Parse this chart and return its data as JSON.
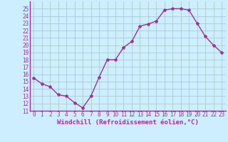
{
  "x": [
    0,
    1,
    2,
    3,
    4,
    5,
    6,
    7,
    8,
    9,
    10,
    11,
    12,
    13,
    14,
    15,
    16,
    17,
    18,
    19,
    20,
    21,
    22,
    23
  ],
  "y": [
    15.5,
    14.7,
    14.3,
    13.2,
    13.0,
    12.1,
    11.4,
    13.0,
    15.6,
    18.0,
    18.0,
    19.7,
    20.5,
    22.6,
    22.9,
    23.3,
    24.8,
    25.0,
    25.0,
    24.8,
    23.0,
    21.2,
    20.0,
    19.0
  ],
  "line_color": "#993399",
  "marker": "*",
  "marker_size": 3,
  "background_color": "#cceeff",
  "grid_color": "#aacccc",
  "xlabel": "Windchill (Refroidissement éolien,°C)",
  "xlabel_fontsize": 6.5,
  "ylim": [
    11,
    26
  ],
  "xlim": [
    -0.5,
    23.5
  ],
  "yticks": [
    11,
    12,
    13,
    14,
    15,
    16,
    17,
    18,
    19,
    20,
    21,
    22,
    23,
    24,
    25
  ],
  "xticks": [
    0,
    1,
    2,
    3,
    4,
    5,
    6,
    7,
    8,
    9,
    10,
    11,
    12,
    13,
    14,
    15,
    16,
    17,
    18,
    19,
    20,
    21,
    22,
    23
  ],
  "tick_fontsize": 5.5,
  "line_width": 1.0,
  "spine_color": "#993399",
  "axis_bg": "#cceeff"
}
